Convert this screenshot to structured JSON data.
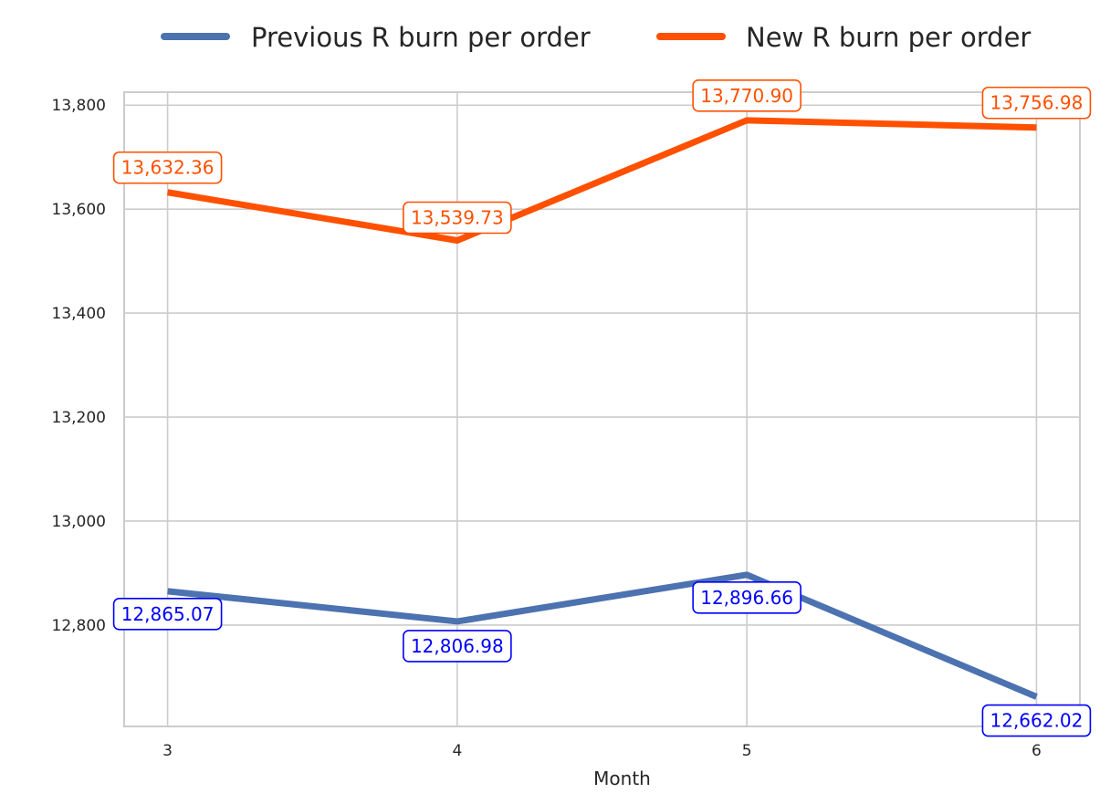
{
  "chart_data": {
    "type": "line",
    "x": [
      3,
      4,
      5,
      6
    ],
    "xlabel": "Month",
    "ylabel": "",
    "ylim": [
      12605,
      13825
    ],
    "yticks": [
      12800,
      13000,
      13200,
      13400,
      13600,
      13800
    ],
    "ytick_labels": [
      "12,800",
      "13,000",
      "13,200",
      "13,400",
      "13,600",
      "13,800"
    ],
    "xtick_labels": [
      "3",
      "4",
      "5",
      "6"
    ],
    "grid": true,
    "legend_position": "top-center",
    "series": [
      {
        "name": "Previous R burn per order",
        "color": "#4c72b0",
        "label_color": "#0000ff",
        "values": [
          12865.07,
          12806.98,
          12896.66,
          12662.02
        ],
        "labels": [
          "12,865.07",
          "12,806.98",
          "12,896.66",
          "12,662.02"
        ]
      },
      {
        "name": "New R burn per order",
        "color": "#ff5000",
        "label_color": "#ff5000",
        "values": [
          13632.36,
          13539.73,
          13770.9,
          13756.98
        ],
        "labels": [
          "13,632.36",
          "13,539.73",
          "13,770.90",
          "13,756.98"
        ]
      }
    ]
  }
}
